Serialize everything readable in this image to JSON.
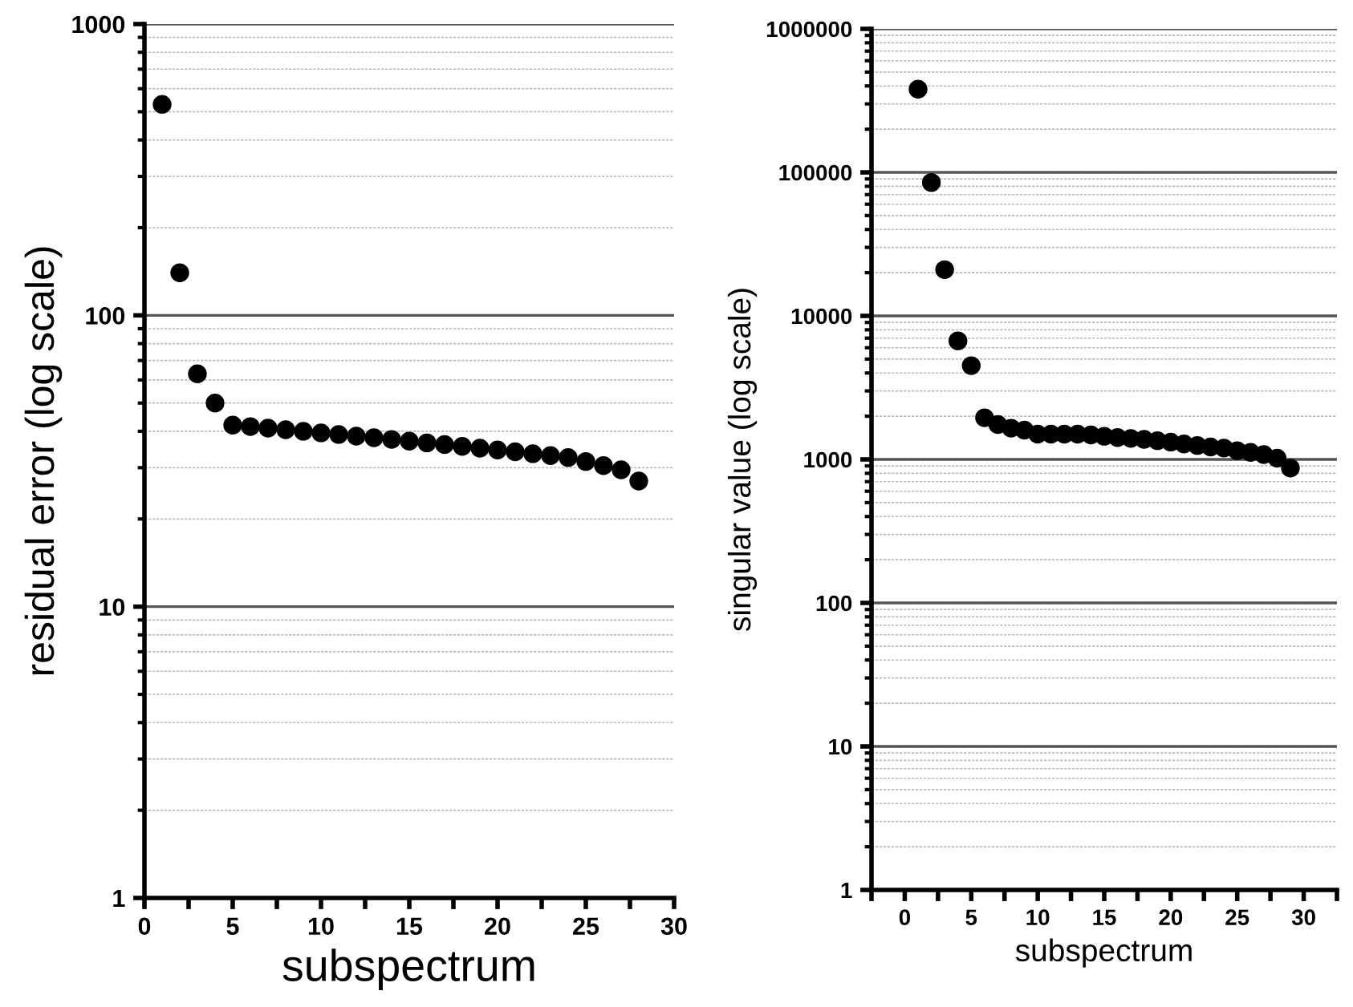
{
  "chart_data": [
    {
      "type": "scatter",
      "xlabel": "subspectrum",
      "ylabel": "residual error (log scale)",
      "log": "y",
      "grid": "y",
      "marker": "circle",
      "x": [
        1,
        2,
        3,
        4,
        5,
        6,
        7,
        8,
        9,
        10,
        11,
        12,
        13,
        14,
        15,
        16,
        17,
        18,
        19,
        20,
        21,
        22,
        23,
        24,
        25,
        26,
        27,
        28
      ],
      "series": [
        {
          "color": "#000000",
          "values": [
            530,
            140,
            63,
            50,
            42,
            41.5,
            41,
            40.5,
            40,
            39.5,
            39,
            38.5,
            38,
            37.5,
            37,
            36.5,
            36,
            35.5,
            35,
            34.5,
            34,
            33.5,
            33,
            32.5,
            31.5,
            30.5,
            29.5,
            27
          ]
        }
      ],
      "xlim": [
        0,
        30
      ],
      "xticks": [
        0,
        {
          "value": 2.5,
          "label": null
        },
        5,
        {
          "value": 7.5,
          "label": null
        },
        10,
        {
          "value": 12.5,
          "label": null
        },
        15,
        {
          "value": 17.5,
          "label": null
        },
        20,
        {
          "value": 22.5,
          "label": null
        },
        25,
        {
          "value": 27.5,
          "label": null
        },
        30
      ],
      "ylim": [
        1,
        1000
      ],
      "yticks": [
        1,
        10,
        100,
        1000
      ]
    },
    {
      "type": "scatter",
      "xlabel": "subspectrum",
      "ylabel": "singular value (log scale)",
      "log": "y",
      "grid": "y",
      "marker": "circle",
      "x": [
        1,
        2,
        3,
        4,
        5,
        6,
        7,
        8,
        9,
        10,
        11,
        12,
        13,
        14,
        15,
        16,
        17,
        18,
        19,
        20,
        21,
        22,
        23,
        24,
        25,
        26,
        27,
        28,
        29
      ],
      "series": [
        {
          "color": "#000000",
          "values": [
            380000,
            85000,
            21000,
            6700,
            4500,
            1950,
            1750,
            1650,
            1600,
            1500,
            1500,
            1500,
            1500,
            1480,
            1450,
            1420,
            1400,
            1380,
            1350,
            1320,
            1280,
            1250,
            1220,
            1200,
            1150,
            1120,
            1080,
            1020,
            870
          ]
        }
      ],
      "xlim": [
        -2.5,
        32.5
      ],
      "xticks": [
        {
          "value": -2.5,
          "label": null
        },
        0,
        {
          "value": 2.5,
          "label": null
        },
        5,
        {
          "value": 7.5,
          "label": null
        },
        10,
        {
          "value": 12.5,
          "label": null
        },
        15,
        {
          "value": 17.5,
          "label": null
        },
        20,
        {
          "value": 22.5,
          "label": null
        },
        25,
        {
          "value": 27.5,
          "label": null
        },
        30,
        {
          "value": 32.5,
          "label": null
        }
      ],
      "ylim": [
        1,
        1000000
      ],
      "yticks": [
        1,
        10,
        100,
        1000,
        10000,
        100000,
        1000000
      ]
    }
  ]
}
